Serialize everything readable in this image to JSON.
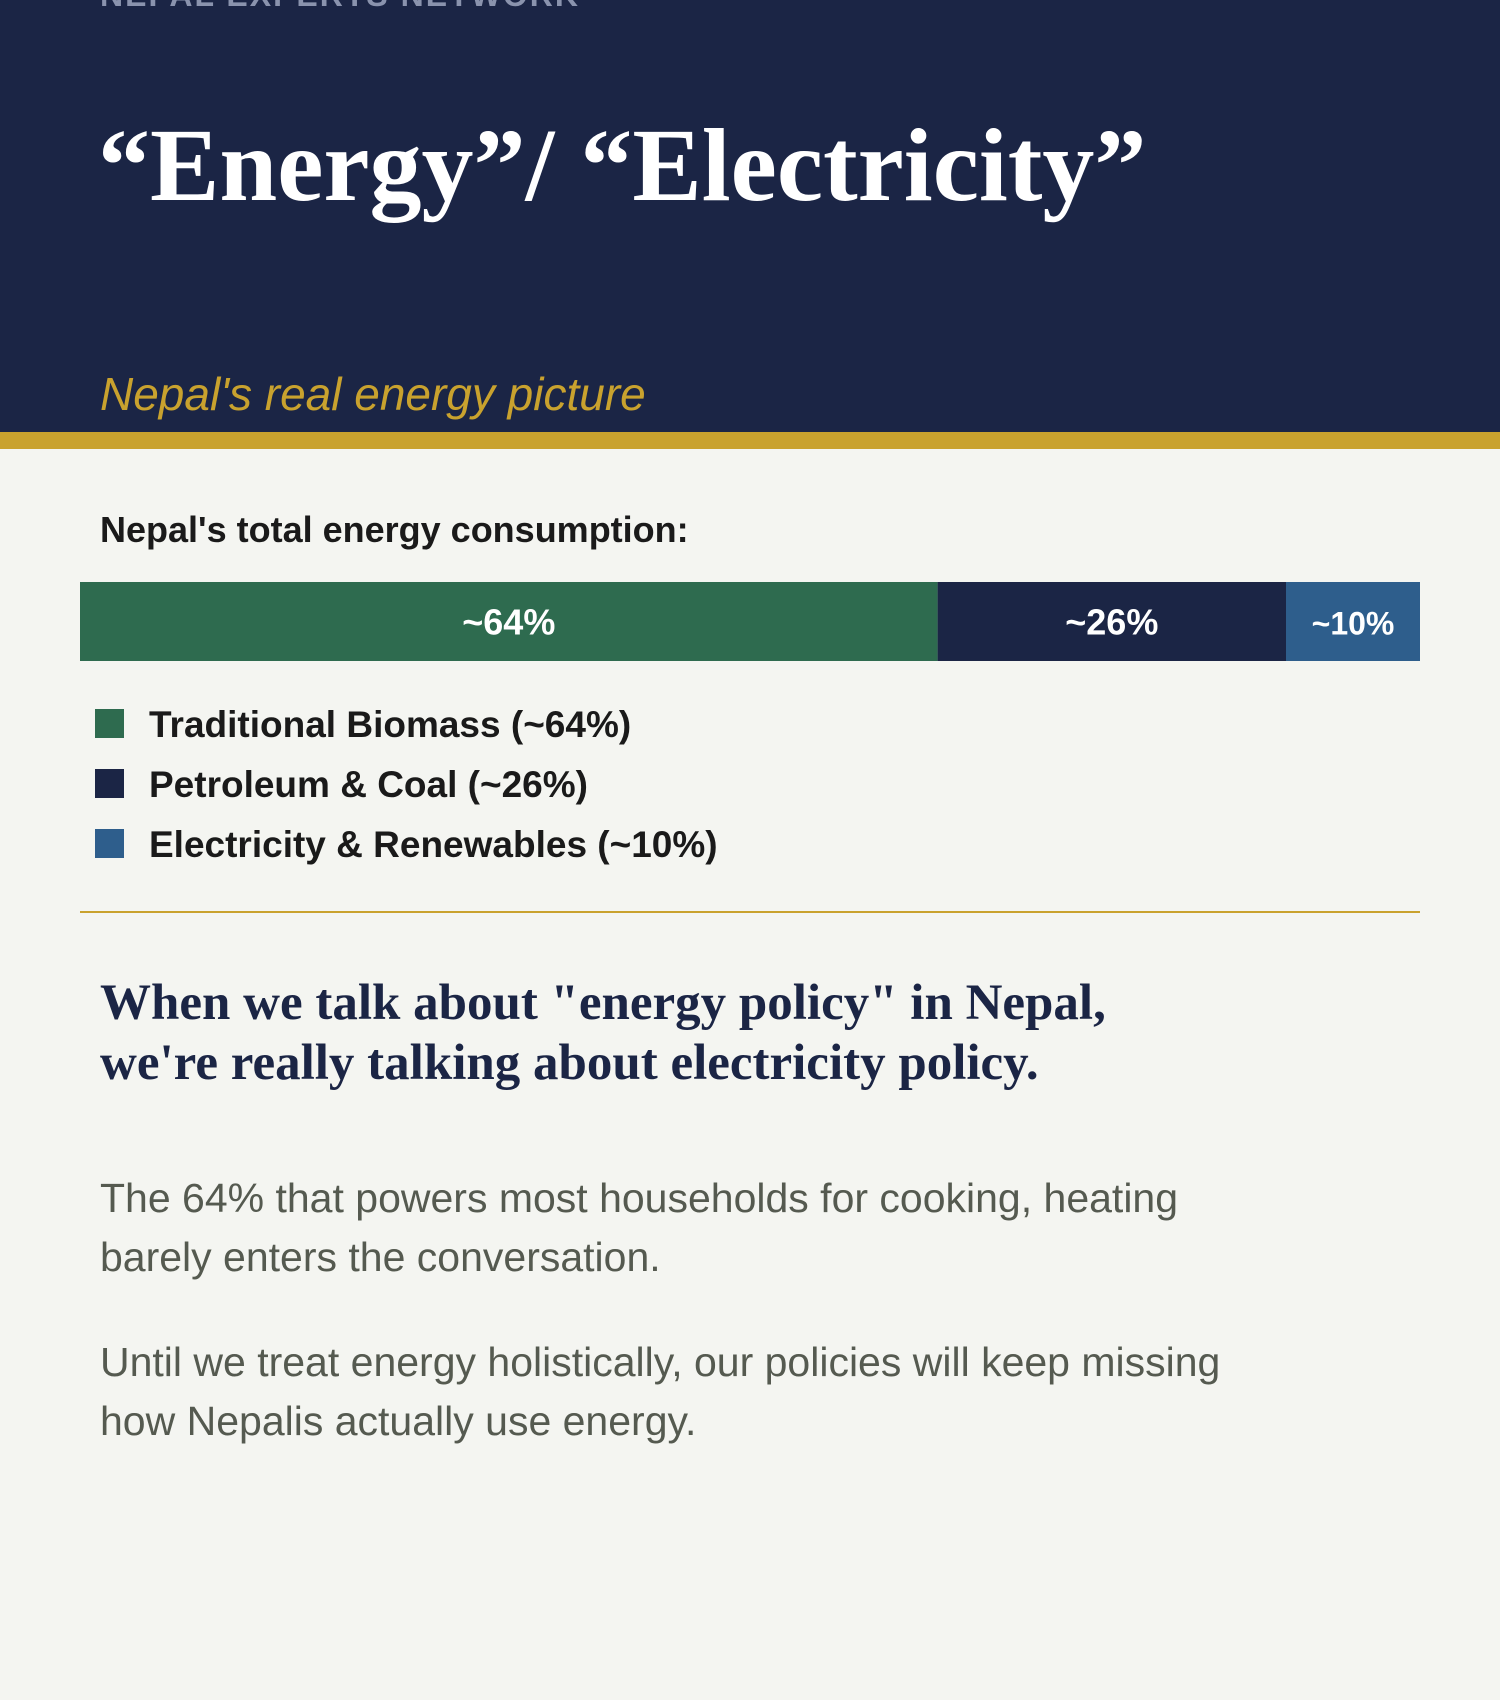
{
  "header": {
    "org": "NEPAL EXPERTS NETWORK",
    "title": "“Energy”/ “Electricity”",
    "subtitle": "Nepal's real energy picture"
  },
  "chart_data": {
    "type": "stacked-bar",
    "title": "Nepal's total energy consumption:",
    "series": [
      {
        "name": "Traditional Biomass (~64%)",
        "color": "#2e6b4f",
        "values": [
          64
        ],
        "value_labels": [
          "~64%"
        ]
      },
      {
        "name": "Petroleum & Coal (~26%)",
        "color": "#1b2545",
        "values": [
          26
        ],
        "value_labels": [
          "~26%"
        ]
      },
      {
        "name": "Electricity & Renewables (~10%)",
        "color": "#2e5e8c",
        "values": [
          10
        ],
        "value_labels": [
          "~10%"
        ]
      }
    ]
  },
  "body": {
    "heading": [
      "When we talk about \"energy policy\" in Nepal,",
      "we're really talking about electricity policy."
    ],
    "paragraphs": [
      [
        "The 64% that powers most households for cooking, heating",
        "barely enters the conversation."
      ],
      [
        "Until we treat energy holistically, our policies will keep missing",
        "how Nepalis actually use energy."
      ]
    ]
  }
}
